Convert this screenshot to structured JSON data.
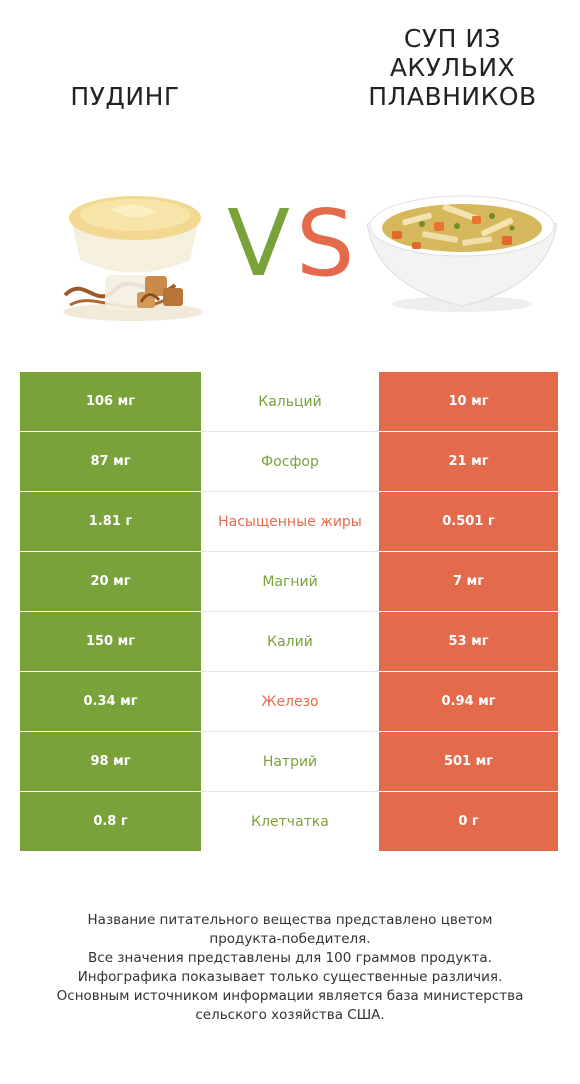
{
  "header": {
    "left_title": "Пудинг",
    "right_title_lines": [
      "Суп из",
      "акульих",
      "плавников"
    ],
    "vs_v": "V",
    "vs_s": "S"
  },
  "colors": {
    "winner_left": "#7aa23a",
    "winner_right": "#e46a4c"
  },
  "rows": [
    {
      "left": "106 мг",
      "nutrient": "Кальций",
      "right": "10 мг",
      "winner": "left"
    },
    {
      "left": "87 мг",
      "nutrient": "Фосфор",
      "right": "21 мг",
      "winner": "left"
    },
    {
      "left": "1.81 г",
      "nutrient": "Насыщенные жиры",
      "right": "0.501 г",
      "winner": "right"
    },
    {
      "left": "20 мг",
      "nutrient": "Магний",
      "right": "7 мг",
      "winner": "left"
    },
    {
      "left": "150 мг",
      "nutrient": "Калий",
      "right": "53 мг",
      "winner": "left"
    },
    {
      "left": "0.34 мг",
      "nutrient": "Железо",
      "right": "0.94 мг",
      "winner": "right"
    },
    {
      "left": "98 мг",
      "nutrient": "Натрий",
      "right": "501 мг",
      "winner": "left"
    },
    {
      "left": "0.8 г",
      "nutrient": "Клетчатка",
      "right": "0 г",
      "winner": "left"
    }
  ],
  "footer": {
    "lines": [
      "Название питательного вещества представлено цветом",
      "продукта-победителя.",
      "Все значения представлены для 100 граммов продукта.",
      "Инфографика показывает только существенные различия.",
      "Основным источником информации является база министерства",
      "сельского хозяйства США."
    ]
  }
}
